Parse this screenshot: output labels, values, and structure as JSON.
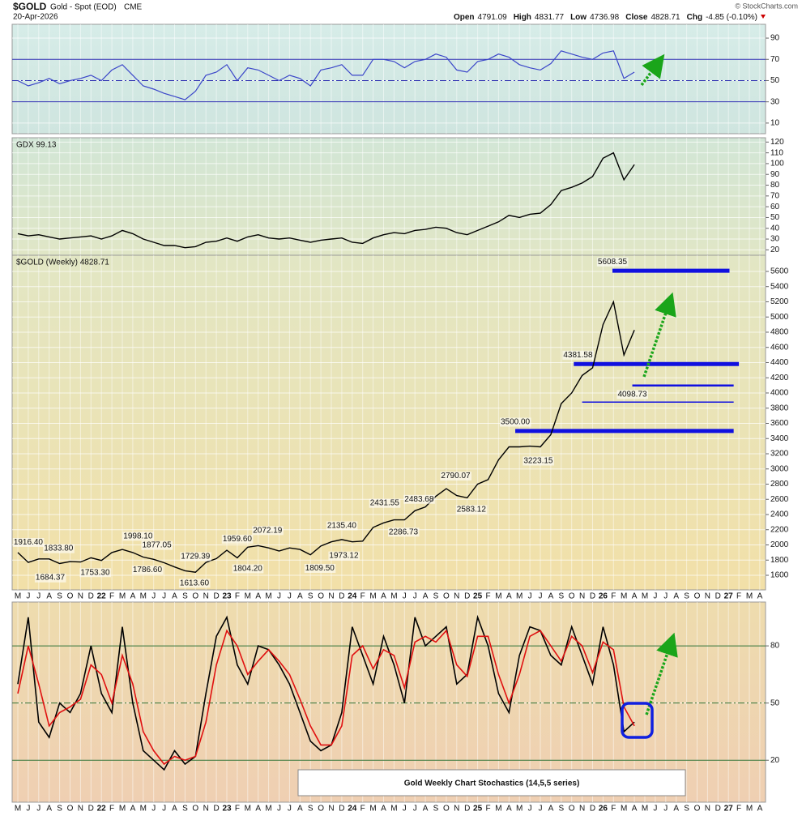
{
  "header": {
    "symbol": "$GOLD",
    "name": "Gold - Spot (EOD)",
    "exchange": "CME",
    "date": "20-Apr-2026",
    "quote": [
      {
        "label": "Open",
        "value": 4791.09
      },
      {
        "label": "High",
        "value": 4831.77
      },
      {
        "label": "Low",
        "value": 4736.98
      },
      {
        "label": "Close",
        "value": 4828.71
      },
      {
        "label": "Chg",
        "value": "-4.85 (-0.10%)"
      }
    ],
    "credit": "© StockCharts.com"
  },
  "chart_data": [
    {
      "type": "line",
      "color": "#3b46c9",
      "values": [
        50,
        45,
        48,
        52,
        47,
        50,
        52,
        55,
        50,
        60,
        65,
        55,
        45,
        42,
        38,
        35,
        32,
        40,
        55,
        58,
        65,
        50,
        62,
        60,
        55,
        50,
        55,
        52,
        45,
        60,
        62,
        65,
        55,
        55,
        70,
        70,
        68,
        62,
        68,
        70,
        75,
        72,
        60,
        58,
        68,
        70,
        75,
        72,
        65,
        62,
        60,
        66,
        78,
        75,
        72,
        70,
        76,
        78,
        52,
        58,
        null,
        null,
        null,
        null,
        null,
        null,
        null,
        null,
        null,
        null,
        null,
        null
      ],
      "ylim": [
        0,
        103
      ],
      "yticks": [
        10,
        30,
        50,
        70,
        90
      ],
      "levels": [
        70,
        50,
        30
      ],
      "grid": true
    },
    {
      "type": "line",
      "title": "GDX 99.13",
      "color": "#000000",
      "values": [
        35,
        33,
        34,
        32,
        30,
        31,
        32,
        33,
        30,
        33,
        38,
        35,
        30,
        27,
        24,
        24,
        22,
        23,
        27,
        28,
        31,
        28,
        32,
        34,
        31,
        30,
        31,
        29,
        27,
        29,
        30,
        31,
        27,
        26,
        31,
        34,
        36,
        35,
        38,
        39,
        41,
        40,
        36,
        34,
        38,
        42,
        46,
        52,
        50,
        53,
        54,
        62,
        75,
        78,
        82,
        88,
        105,
        110,
        85,
        99.13,
        null,
        null,
        null,
        null,
        null,
        null,
        null,
        null,
        null,
        null,
        null,
        null
      ],
      "ylim": [
        15,
        124
      ],
      "yticks": [
        20,
        30,
        40,
        50,
        60,
        70,
        80,
        90,
        100,
        110,
        120
      ],
      "grid": true
    },
    {
      "type": "line",
      "title": "$GOLD (Weekly) 4828.71",
      "color": "#000000",
      "categories": [
        "M",
        "J",
        "J",
        "A",
        "S",
        "O",
        "N",
        "D",
        "22",
        "F",
        "M",
        "A",
        "M",
        "J",
        "J",
        "A",
        "S",
        "O",
        "N",
        "D",
        "23",
        "F",
        "M",
        "A",
        "M",
        "J",
        "J",
        "A",
        "S",
        "O",
        "N",
        "D",
        "24",
        "F",
        "M",
        "A",
        "M",
        "J",
        "J",
        "A",
        "S",
        "O",
        "N",
        "D",
        "25",
        "F",
        "M",
        "A",
        "M",
        "J",
        "J",
        "A",
        "S",
        "O",
        "N",
        "D",
        "26",
        "F",
        "M",
        "A",
        "M",
        "J",
        "J",
        "A",
        "S",
        "O",
        "N",
        "D",
        "27",
        "F",
        "M",
        "A"
      ],
      "values": [
        1900,
        1770,
        1815,
        1815,
        1755,
        1780,
        1775,
        1830,
        1795,
        1900,
        1940,
        1900,
        1840,
        1810,
        1765,
        1710,
        1660,
        1640,
        1770,
        1820,
        1930,
        1830,
        1970,
        1990,
        1960,
        1920,
        1960,
        1940,
        1870,
        1985,
        2040,
        2070,
        2040,
        2050,
        2230,
        2290,
        2330,
        2330,
        2450,
        2500,
        2640,
        2740,
        2650,
        2620,
        2800,
        2860,
        3120,
        3290,
        3290,
        3300,
        3290,
        3450,
        3860,
        4000,
        4230,
        4330,
        4900,
        5200,
        4500,
        4828.71,
        null,
        null,
        null,
        null,
        null,
        null,
        null,
        null,
        null,
        null,
        null,
        null
      ],
      "ylim": [
        1408,
        5813
      ],
      "yticks": [
        1600,
        1800,
        2000,
        2200,
        2400,
        2600,
        2800,
        3000,
        3200,
        3400,
        3600,
        3800,
        4000,
        4200,
        4400,
        4600,
        4800,
        5000,
        5200,
        5400,
        5600
      ],
      "grid": true,
      "annotations": [
        {
          "text": "1916.40",
          "value": 1916.4,
          "x": 1.0
        },
        {
          "text": "1833.80",
          "value": 1833.8,
          "x": 3.9
        },
        {
          "text": "1684.37",
          "value": 1684.37,
          "x": 3.1
        },
        {
          "text": "1753.30",
          "value": 1753.3,
          "x": 7.4
        },
        {
          "text": "1998.10",
          "value": 1998.1,
          "x": 11.5
        },
        {
          "text": "1877.05",
          "value": 1877.05,
          "x": 13.3
        },
        {
          "text": "1786.60",
          "value": 1786.6,
          "x": 12.4
        },
        {
          "text": "1729.39",
          "value": 1729.39,
          "x": 17.0
        },
        {
          "text": "1613.60",
          "value": 1613.6,
          "x": 16.9
        },
        {
          "text": "1959.60",
          "value": 1959.6,
          "x": 21.0
        },
        {
          "text": "1804.20",
          "value": 1804.2,
          "x": 22.0
        },
        {
          "text": "2072.19",
          "value": 2072.19,
          "x": 23.9
        },
        {
          "text": "1973.12",
          "value": 1973.12,
          "x": 31.2
        },
        {
          "text": "1809.50",
          "value": 1809.5,
          "x": 28.9
        },
        {
          "text": "2135.40",
          "value": 2135.4,
          "x": 31.0
        },
        {
          "text": "2431.55",
          "value": 2431.55,
          "x": 35.1
        },
        {
          "text": "2286.73",
          "value": 2286.73,
          "x": 36.9
        },
        {
          "text": "2483.68",
          "value": 2483.68,
          "x": 38.4
        },
        {
          "text": "2790.07",
          "value": 2790.07,
          "x": 41.9
        },
        {
          "text": "2583.12",
          "value": 2583.12,
          "x": 43.4
        },
        {
          "text": "3500.00",
          "value": 3500,
          "x": 47.6
        },
        {
          "text": "3223.15",
          "value": 3223.15,
          "x": 49.8
        },
        {
          "text": "4381.58",
          "value": 4381.58,
          "x": 53.6
        },
        {
          "text": "5608.35",
          "value": 5608.35,
          "x": 56.9
        },
        {
          "text": "4098.73",
          "value": 4098.73,
          "x": 58.8
        }
      ],
      "hlines": [
        {
          "value": 5608.35,
          "from": 56.9,
          "to": 68.1,
          "style": "thick"
        },
        {
          "value": 4381.58,
          "from": 53.2,
          "to": 69.0,
          "style": "thick"
        },
        {
          "value": 4098.73,
          "from": 58.8,
          "to": 68.5,
          "style": "medium"
        },
        {
          "value": 3880,
          "from": 54.0,
          "to": 68.5,
          "style": "thin"
        },
        {
          "value": 3500,
          "from": 47.6,
          "to": 68.5,
          "style": "thick"
        }
      ]
    },
    {
      "type": "line",
      "title": "Gold Weekly Chart Stochastics (14,5,5 series)",
      "categories": [
        "M",
        "J",
        "J",
        "A",
        "S",
        "O",
        "N",
        "D",
        "22",
        "F",
        "M",
        "A",
        "M",
        "J",
        "J",
        "A",
        "S",
        "O",
        "N",
        "D",
        "23",
        "F",
        "M",
        "A",
        "M",
        "J",
        "J",
        "A",
        "S",
        "O",
        "N",
        "D",
        "24",
        "F",
        "M",
        "A",
        "M",
        "J",
        "J",
        "A",
        "S",
        "O",
        "N",
        "D",
        "25",
        "F",
        "M",
        "A",
        "M",
        "J",
        "J",
        "A",
        "S",
        "O",
        "N",
        "D",
        "26",
        "F",
        "M",
        "A",
        "M",
        "J",
        "J",
        "A",
        "S",
        "O",
        "N",
        "D",
        "27",
        "F",
        "M",
        "A"
      ],
      "series": [
        {
          "color": "#000000",
          "values": [
            60,
            95,
            40,
            32,
            50,
            45,
            55,
            80,
            55,
            45,
            90,
            50,
            25,
            20,
            15,
            25,
            18,
            22,
            55,
            85,
            95,
            70,
            60,
            80,
            78,
            70,
            60,
            45,
            30,
            25,
            28,
            45,
            90,
            75,
            60,
            85,
            70,
            50,
            95,
            80,
            85,
            90,
            60,
            65,
            95,
            80,
            55,
            45,
            75,
            90,
            88,
            75,
            70,
            90,
            75,
            60,
            90,
            70,
            35,
            40,
            null,
            null,
            null,
            null,
            null,
            null,
            null,
            null,
            null,
            null,
            null,
            null
          ]
        },
        {
          "color": "#e01010",
          "values": [
            55,
            80,
            60,
            38,
            45,
            48,
            52,
            70,
            65,
            50,
            75,
            60,
            35,
            25,
            18,
            22,
            20,
            22,
            40,
            70,
            88,
            80,
            65,
            72,
            78,
            72,
            65,
            52,
            38,
            28,
            28,
            38,
            75,
            80,
            68,
            78,
            75,
            58,
            82,
            85,
            82,
            88,
            70,
            64,
            85,
            85,
            65,
            50,
            65,
            85,
            88,
            80,
            72,
            85,
            80,
            66,
            82,
            78,
            48,
            38,
            null,
            null,
            null,
            null,
            null,
            null,
            null,
            null,
            null,
            null,
            null,
            null
          ]
        }
      ],
      "ylim": [
        -2,
        103
      ],
      "yticks": [
        20,
        50,
        80
      ],
      "levels": [
        80,
        50,
        20
      ],
      "grid": true
    }
  ]
}
